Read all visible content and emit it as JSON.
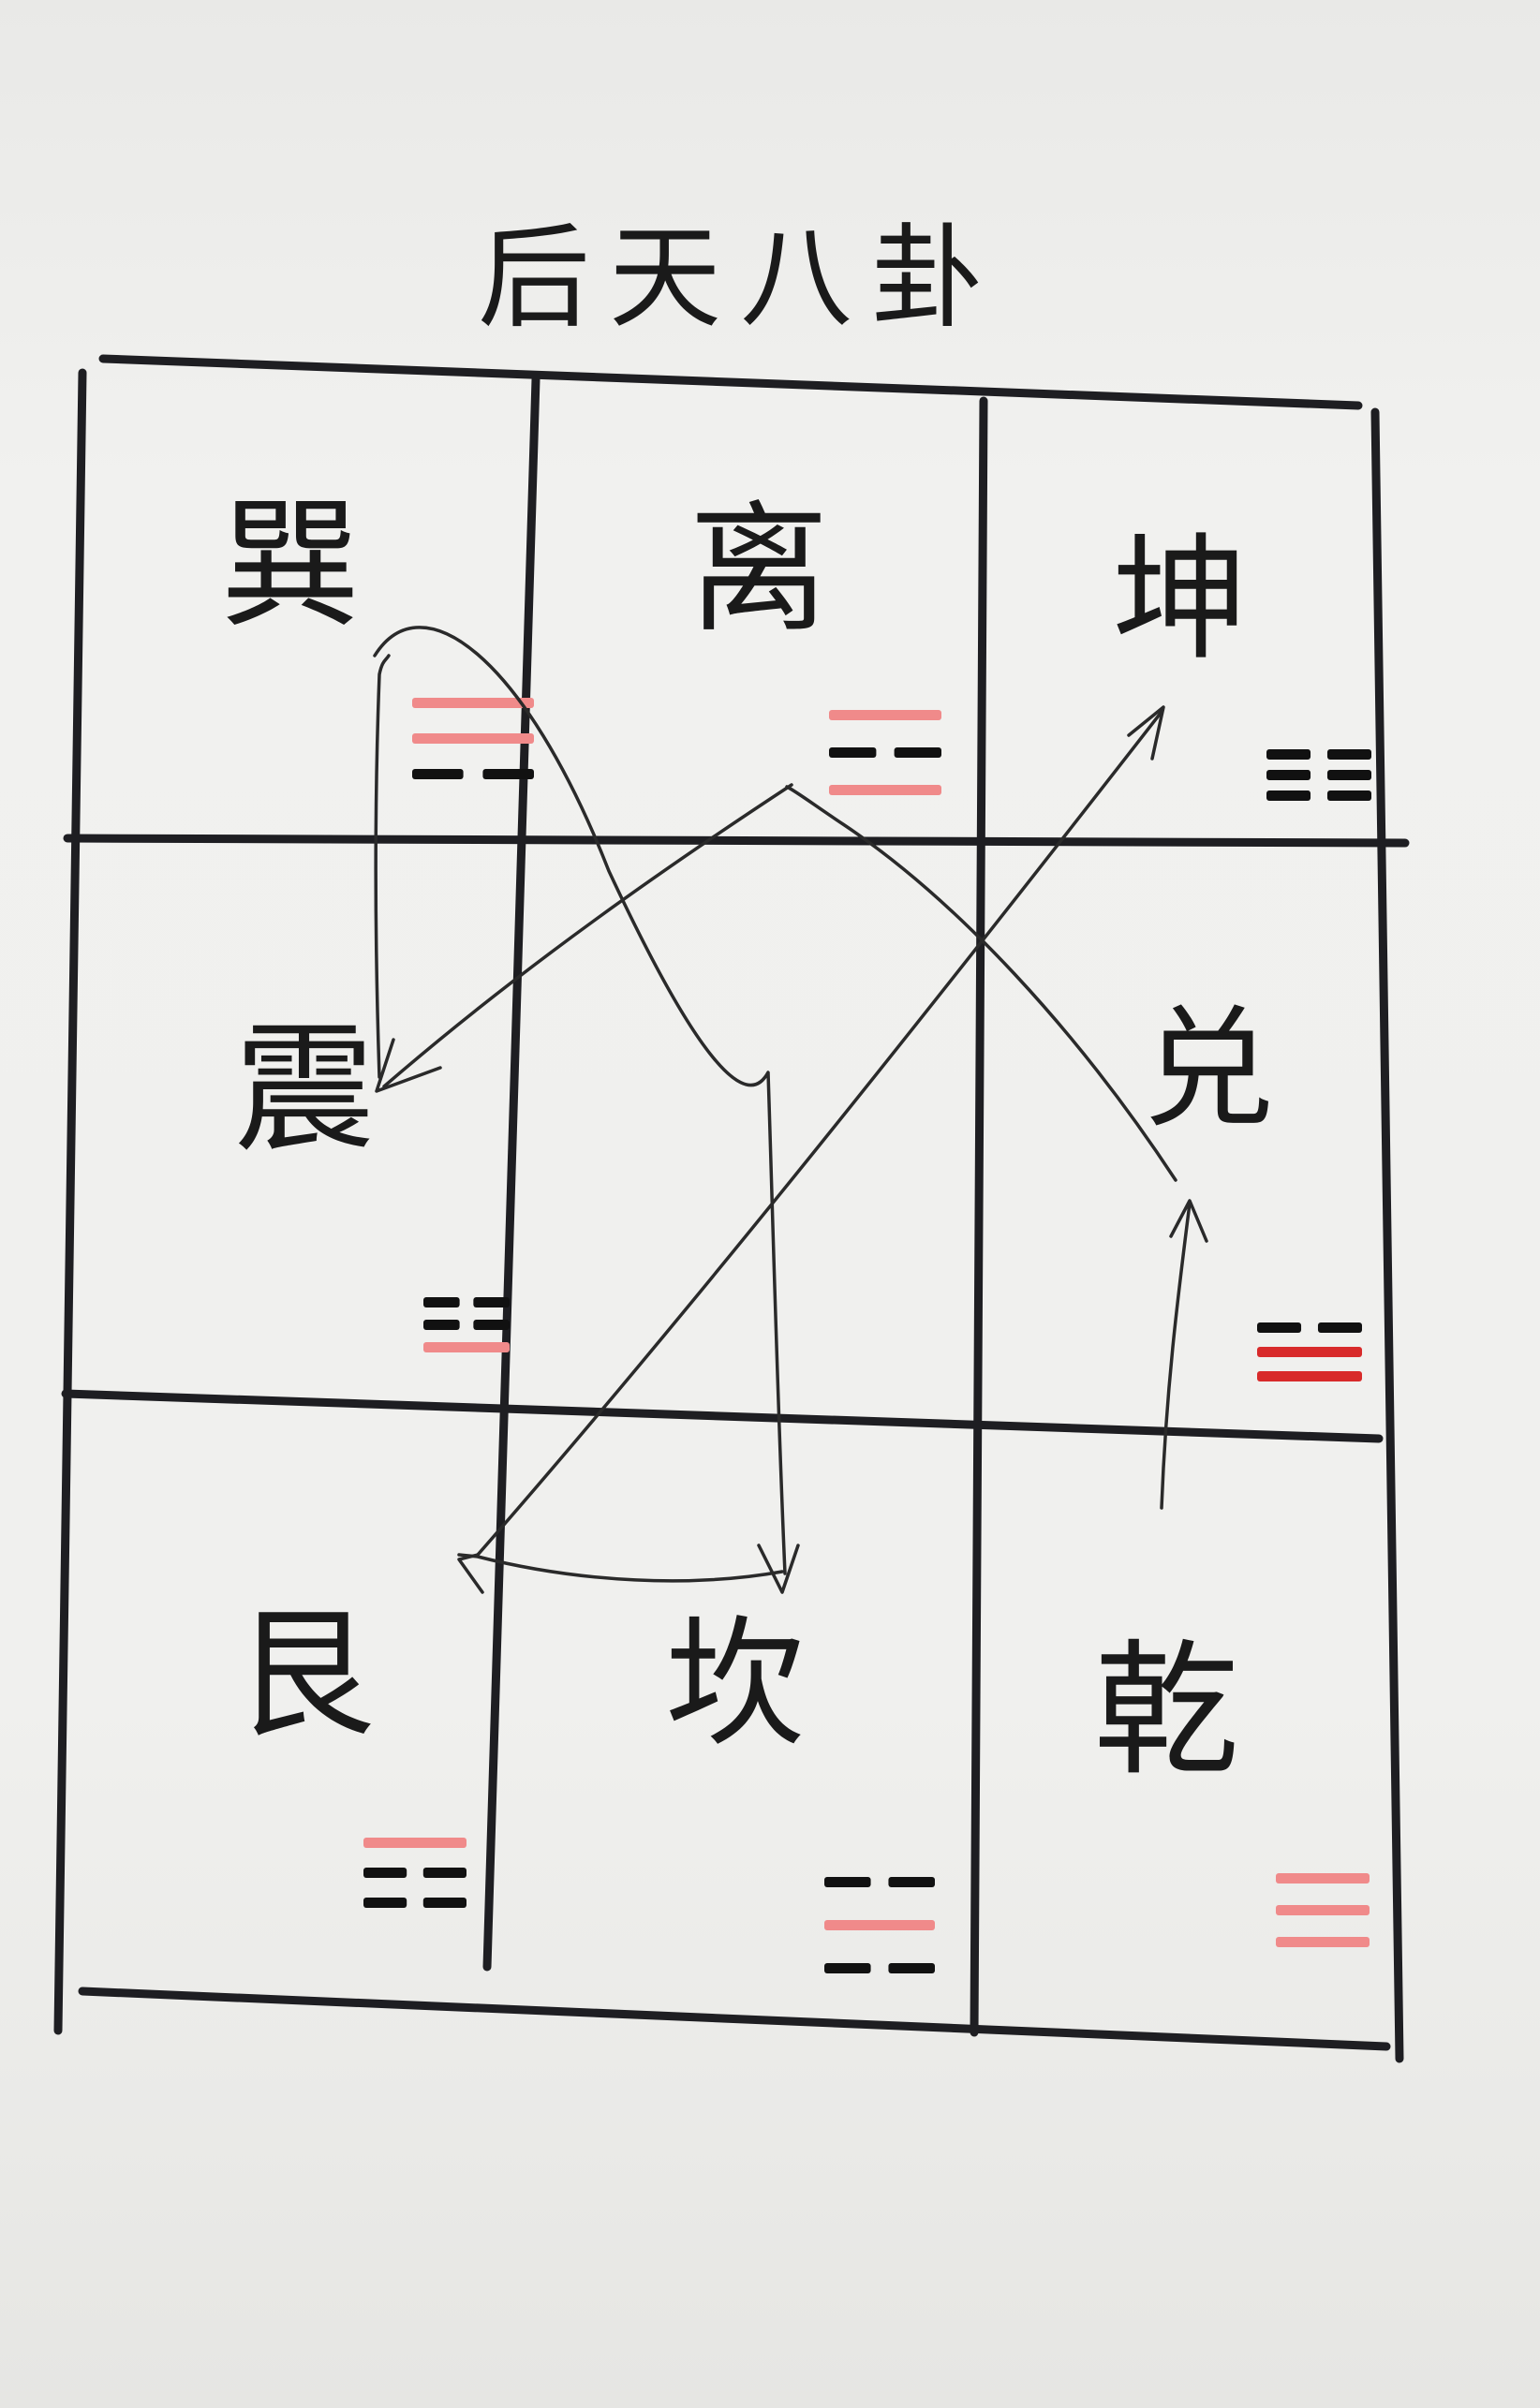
{
  "title": "后天八卦",
  "cells": [
    {
      "key": "xun",
      "name": "巽",
      "lines_bottom_to_top": [
        {
          "type": "broken",
          "color": "black"
        },
        {
          "type": "solid",
          "color": "pink"
        },
        {
          "type": "solid",
          "color": "pink"
        }
      ]
    },
    {
      "key": "li",
      "name": "离",
      "lines_bottom_to_top": [
        {
          "type": "solid",
          "color": "pink"
        },
        {
          "type": "broken",
          "color": "black"
        },
        {
          "type": "solid",
          "color": "pink"
        }
      ]
    },
    {
      "key": "kun",
      "name": "坤",
      "lines_bottom_to_top": [
        {
          "type": "broken",
          "color": "black"
        },
        {
          "type": "broken",
          "color": "black"
        },
        {
          "type": "broken",
          "color": "black"
        }
      ]
    },
    {
      "key": "zhen",
      "name": "震",
      "lines_bottom_to_top": [
        {
          "type": "solid",
          "color": "pink"
        },
        {
          "type": "broken",
          "color": "black"
        },
        {
          "type": "broken",
          "color": "black"
        }
      ]
    },
    {
      "key": "dui",
      "name": "兑",
      "lines_bottom_to_top": [
        {
          "type": "solid",
          "color": "red"
        },
        {
          "type": "solid",
          "color": "red"
        },
        {
          "type": "broken",
          "color": "black"
        }
      ]
    },
    {
      "key": "gen",
      "name": "艮",
      "lines_bottom_to_top": [
        {
          "type": "broken",
          "color": "black"
        },
        {
          "type": "broken",
          "color": "black"
        },
        {
          "type": "solid",
          "color": "pink"
        }
      ]
    },
    {
      "key": "kan",
      "name": "坎",
      "lines_bottom_to_top": [
        {
          "type": "broken",
          "color": "black"
        },
        {
          "type": "solid",
          "color": "pink"
        },
        {
          "type": "broken",
          "color": "black"
        }
      ]
    },
    {
      "key": "qian",
      "name": "乾",
      "lines_bottom_to_top": [
        {
          "type": "solid",
          "color": "pink"
        },
        {
          "type": "solid",
          "color": "pink"
        },
        {
          "type": "solid",
          "color": "pink"
        }
      ]
    }
  ],
  "colors": {
    "black": "#111111",
    "pink": "#f08a8a",
    "red": "#d82a2a",
    "paper": "#efefed",
    "grid": "#1e1e22"
  }
}
